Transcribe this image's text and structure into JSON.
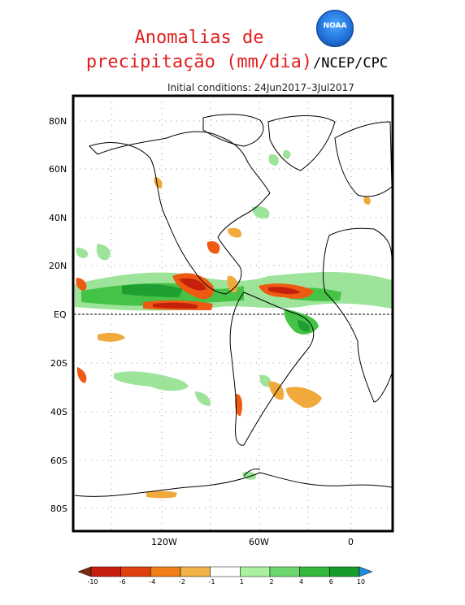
{
  "title_line1": "Anomalias de",
  "title_line2": "precipitação (mm/dia)",
  "logo_text": "NOAA",
  "organization": "/NCEP/CPC",
  "initial_conditions": "Initial conditions: 24Jun2017–3Jul2017",
  "map": {
    "lat_labels": [
      "80N",
      "60N",
      "40N",
      "20N",
      "EQ",
      "20S",
      "40S",
      "60S",
      "80S"
    ],
    "lon_labels": [
      "120W",
      "60W",
      "0"
    ],
    "equator_line": "dashed"
  },
  "legend": {
    "tick_labels": [
      "-10",
      "-6",
      "-4",
      "-2",
      "-1",
      "1",
      "2",
      "4",
      "6",
      "10"
    ],
    "colors": [
      "#7a2a10",
      "#c81e0f",
      "#e0400e",
      "#f07d17",
      "#f2b347",
      "#ffffff",
      "#aaf0a0",
      "#6cd56c",
      "#33b83a",
      "#179c2c",
      "#1f8be0"
    ],
    "color_meaning": {
      "brown_red_orange": "negative anomaly (dry)",
      "green_blue": "positive anomaly (wet)"
    }
  },
  "colors": {
    "title": "#e02020",
    "wet_light": "#9de39a",
    "wet_mid": "#45c346",
    "wet_dark": "#1f9f31",
    "dry_light": "#f2a93b",
    "dry_mid": "#ee5a12",
    "dry_dark": "#c5200c"
  }
}
